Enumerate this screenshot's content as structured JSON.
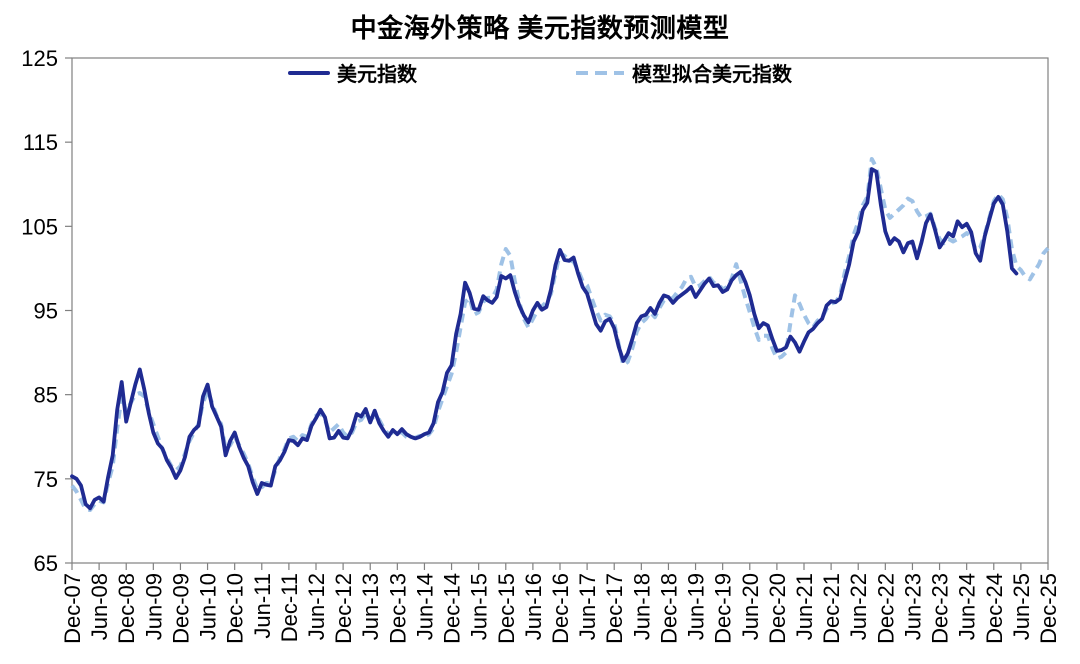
{
  "title": "中金海外策略 美元指数预测模型",
  "legend": [
    {
      "label": "美元指数",
      "color": "#1f2b92",
      "style": "solid"
    },
    {
      "label": "模型拟合美元指数",
      "color": "#9fc2e6",
      "style": "dashed"
    }
  ],
  "axis_color": "#808080",
  "chart_data": {
    "type": "line",
    "title": "中金海外策略 美元指数预测模型",
    "grid": false,
    "legend_position": "top",
    "ylim": [
      65,
      125
    ],
    "y_ticks": [
      65,
      75,
      85,
      95,
      105,
      115,
      125
    ],
    "total_months": 216,
    "x_months_per_tick": 6,
    "x_tick_labels": [
      "Dec-07",
      "Jun-08",
      "Dec-08",
      "Jun-09",
      "Dec-09",
      "Jun-10",
      "Dec-10",
      "Jun-11",
      "Dec-11",
      "Jun-12",
      "Dec-12",
      "Jun-13",
      "Dec-13",
      "Jun-14",
      "Dec-14",
      "Jun-15",
      "Dec-15",
      "Jun-16",
      "Dec-16",
      "Jun-17",
      "Dec-17",
      "Jun-18",
      "Dec-18",
      "Jun-19",
      "Dec-19",
      "Jun-20",
      "Dec-20",
      "Jun-21",
      "Dec-21",
      "Jun-22",
      "Dec-22",
      "Jun-23",
      "Dec-23",
      "Jun-24",
      "Dec-24",
      "Jun-25",
      "Dec-25"
    ],
    "x_start": "Dec-07",
    "series": [
      {
        "name": "美元指数",
        "color": "#1f2b92",
        "dash": false,
        "start_month_index": 0,
        "values": [
          75.3,
          75.0,
          74.2,
          72.0,
          71.5,
          72.5,
          72.8,
          72.3,
          75.2,
          77.8,
          83.2,
          86.5,
          81.8,
          84.0,
          86.2,
          88.0,
          85.6,
          82.8,
          80.5,
          79.2,
          78.6,
          77.2,
          76.3,
          75.1,
          76.0,
          77.6,
          80.0,
          80.8,
          81.3,
          84.8,
          86.2,
          83.6,
          82.4,
          81.2,
          77.8,
          79.5,
          80.5,
          78.8,
          77.5,
          76.5,
          74.6,
          73.2,
          74.5,
          74.3,
          74.2,
          76.5,
          77.2,
          78.2,
          79.6,
          79.5,
          79.0,
          79.8,
          79.6,
          81.3,
          82.2,
          83.2,
          82.3,
          79.8,
          79.9,
          80.7,
          79.9,
          79.8,
          80.9,
          82.7,
          82.4,
          83.3,
          81.7,
          83.1,
          81.6,
          80.7,
          80.0,
          80.8,
          80.3,
          80.9,
          80.3,
          80.0,
          79.8,
          80.0,
          80.3,
          80.5,
          81.6,
          84.1,
          85.3,
          87.6,
          88.5,
          92.2,
          94.6,
          98.3,
          97.1,
          95.2,
          95.1,
          96.7,
          96.2,
          95.9,
          96.6,
          99.1,
          98.8,
          99.2,
          97.2,
          95.6,
          94.4,
          93.6,
          95.0,
          95.9,
          95.1,
          95.4,
          97.5,
          100.4,
          102.2,
          101.0,
          100.9,
          101.3,
          99.4,
          97.8,
          97.0,
          95.2,
          93.4,
          92.6,
          93.7,
          94.0,
          92.9,
          90.7,
          89.0,
          89.9,
          91.6,
          93.5,
          94.3,
          94.5,
          95.3,
          94.6,
          95.9,
          96.8,
          96.6,
          95.9,
          96.5,
          96.9,
          97.3,
          97.8,
          96.6,
          97.4,
          98.2,
          98.8,
          97.9,
          98.0,
          97.2,
          97.5,
          98.6,
          99.2,
          99.6,
          98.4,
          96.8,
          94.6,
          92.9,
          93.5,
          93.2,
          91.6,
          90.2,
          90.3,
          90.6,
          91.9,
          91.2,
          90.1,
          91.3,
          92.4,
          92.8,
          93.5,
          94.0,
          95.6,
          96.1,
          96.0,
          96.4,
          98.5,
          100.5,
          103.2,
          104.3,
          106.9,
          107.8,
          111.8,
          111.5,
          107.6,
          104.4,
          102.9,
          103.6,
          103.2,
          101.9,
          103.0,
          103.2,
          101.2,
          103.1,
          105.4,
          106.4,
          104.6,
          102.5,
          103.3,
          104.2,
          103.8,
          105.6,
          104.9,
          105.3,
          104.3,
          101.8,
          100.9,
          103.8,
          105.8,
          107.7,
          108.5,
          107.6,
          104.4,
          100.0,
          99.4
        ]
      },
      {
        "name": "模型拟合美元指数",
        "color": "#9fc2e6",
        "dash": true,
        "start_month_index": 0,
        "values": [
          74.2,
          73.5,
          72.5,
          71.4,
          71.3,
          72.0,
          72.4,
          72.2,
          74.5,
          76.5,
          81.0,
          84.8,
          83.0,
          84.0,
          85.0,
          85.2,
          84.8,
          83.0,
          81.5,
          80.0,
          78.5,
          77.5,
          76.5,
          76.0,
          76.5,
          78.0,
          79.5,
          80.5,
          81.5,
          84.0,
          85.5,
          84.0,
          82.5,
          81.5,
          78.5,
          79.0,
          80.0,
          79.0,
          78.0,
          76.8,
          75.2,
          73.8,
          74.0,
          74.5,
          74.5,
          76.0,
          77.5,
          78.5,
          79.8,
          80.0,
          79.5,
          80.2,
          80.0,
          81.5,
          82.5,
          82.8,
          82.0,
          80.5,
          81.0,
          81.5,
          80.5,
          80.0,
          80.5,
          81.8,
          82.0,
          82.8,
          82.0,
          82.5,
          82.0,
          81.0,
          80.3,
          80.5,
          80.5,
          80.5,
          80.0,
          79.8,
          79.9,
          80.1,
          80.0,
          80.3,
          81.0,
          83.0,
          84.5,
          86.0,
          87.5,
          90.0,
          93.0,
          96.0,
          96.5,
          94.5,
          94.8,
          96.0,
          96.5,
          96.5,
          97.5,
          100.5,
          102.3,
          101.5,
          98.5,
          96.0,
          94.0,
          93.0,
          94.0,
          95.0,
          95.5,
          96.0,
          97.0,
          99.5,
          101.8,
          101.5,
          101.0,
          100.8,
          99.8,
          98.5,
          98.0,
          96.5,
          95.0,
          93.8,
          94.5,
          94.3,
          93.5,
          91.0,
          88.5,
          88.9,
          90.5,
          92.5,
          93.5,
          94.0,
          94.8,
          94.2,
          95.3,
          96.2,
          96.3,
          96.5,
          97.2,
          97.8,
          98.8,
          99.0,
          97.8,
          98.0,
          98.5,
          99.0,
          98.3,
          98.2,
          97.5,
          97.8,
          98.8,
          100.5,
          98.5,
          96.5,
          94.8,
          93.0,
          91.5,
          92.0,
          92.0,
          90.5,
          89.3,
          89.5,
          90.0,
          93.5,
          96.8,
          95.8,
          94.5,
          93.5,
          93.0,
          93.8,
          94.2,
          95.2,
          95.8,
          96.0,
          96.8,
          99.5,
          101.5,
          104.0,
          105.5,
          107.5,
          108.5,
          113.0,
          112.0,
          109.5,
          107.0,
          106.0,
          106.5,
          107.0,
          107.5,
          108.3,
          108.0,
          106.8,
          106.0,
          106.2,
          106.5,
          104.8,
          103.5,
          103.0,
          103.5,
          103.2,
          103.5,
          103.8,
          104.2,
          103.8,
          102.2,
          102.5,
          104.0,
          106.0,
          108.0,
          108.8,
          108.2,
          106.0,
          102.3,
          100.3,
          99.8,
          99.0,
          98.7,
          99.6,
          100.5,
          101.8,
          102.4
        ]
      }
    ]
  }
}
